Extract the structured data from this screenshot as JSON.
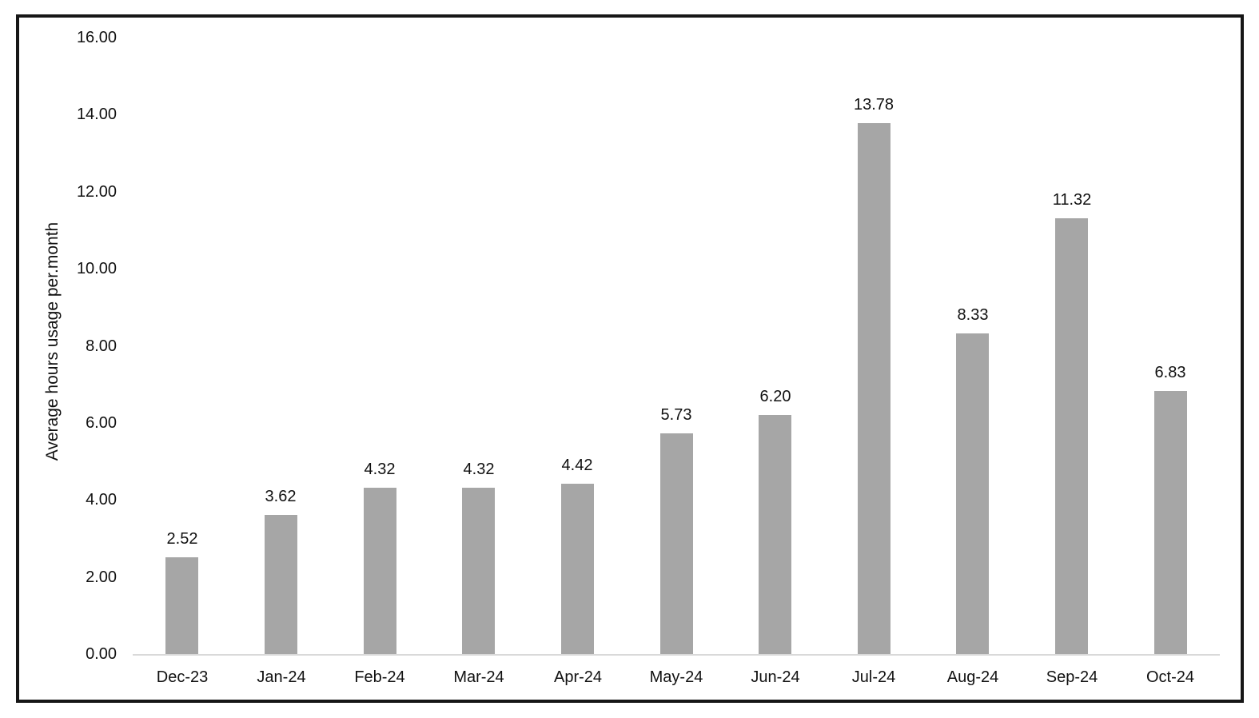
{
  "chart_data": {
    "type": "bar",
    "title": "",
    "categories": [
      "Dec-23",
      "Jan-24",
      "Feb-24",
      "Mar-24",
      "Apr-24",
      "May-24",
      "Jun-24",
      "Jul-24",
      "Aug-24",
      "Sep-24",
      "Oct-24"
    ],
    "values": [
      2.52,
      3.62,
      4.32,
      4.32,
      4.42,
      5.73,
      6.2,
      13.78,
      8.33,
      11.32,
      6.83
    ],
    "value_labels": [
      "2.52",
      "3.62",
      "4.32",
      "4.32",
      "4.42",
      "5.73",
      "6.20",
      "13.78",
      "8.33",
      "11.32",
      "6.83"
    ],
    "xlabel": "",
    "ylabel": "Average hours usage per.month",
    "ylim": [
      0,
      16
    ],
    "ytick_values": [
      0,
      2,
      4,
      6,
      8,
      10,
      12,
      14,
      16
    ],
    "ytick_labels": [
      "0.00",
      "2.00",
      "4.00",
      "6.00",
      "8.00",
      "10.00",
      "12.00",
      "14.00",
      "16.00"
    ],
    "grid": false,
    "legend": "none",
    "series_count": 1,
    "colors": {
      "bar_fill": "#a6a6a6",
      "axis_line": "#d9d9d9",
      "frame_border": "#161616",
      "text": "#111111",
      "background": "#ffffff"
    }
  }
}
